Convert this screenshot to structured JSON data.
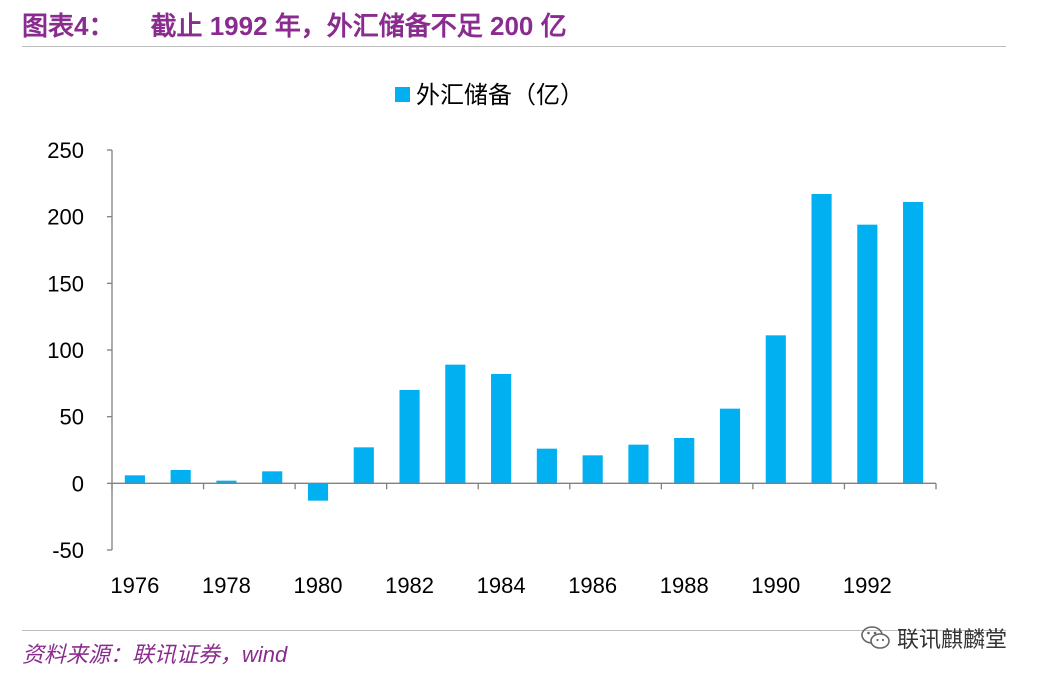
{
  "header": {
    "figure_label": "图表4：",
    "title": "截止 1992 年，外汇储备不足 200 亿"
  },
  "footer": {
    "source": "资料来源：联讯证券，wind",
    "watermark": "联讯麒麟堂"
  },
  "colors": {
    "accent": "#8a2c8f",
    "bar": "#00b0f0",
    "axis": "#808080"
  },
  "chart_data": {
    "type": "bar",
    "title": "",
    "xlabel": "",
    "ylabel": "",
    "legend": "top-center",
    "grid": false,
    "ylim": [
      -50,
      250
    ],
    "yticks": [
      -50,
      0,
      50,
      100,
      150,
      200,
      250
    ],
    "xtick_labels": [
      "1976",
      "1978",
      "1980",
      "1982",
      "1984",
      "1986",
      "1988",
      "1990",
      "1992"
    ],
    "categories": [
      "1976",
      "1977",
      "1978",
      "1979",
      "1980",
      "1981",
      "1982",
      "1983",
      "1984",
      "1985",
      "1986",
      "1987",
      "1988",
      "1989",
      "1990",
      "1991",
      "1992",
      "1993"
    ],
    "series": [
      {
        "name": "外汇储备（亿）",
        "values": [
          6,
          10,
          2,
          9,
          -13,
          27,
          70,
          89,
          82,
          26,
          21,
          29,
          34,
          56,
          111,
          217,
          194,
          211
        ]
      }
    ]
  }
}
